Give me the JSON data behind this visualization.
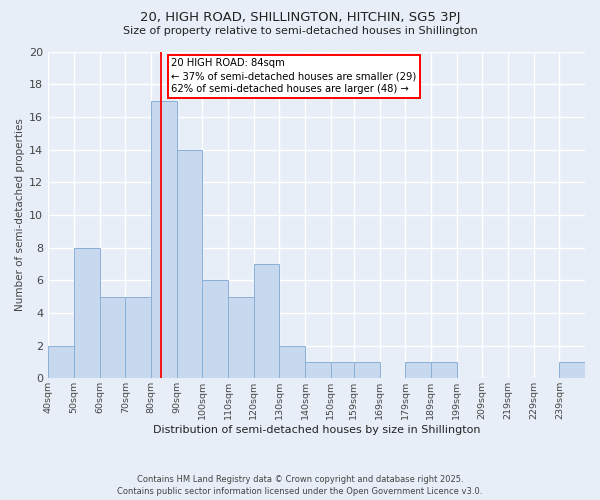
{
  "title1": "20, HIGH ROAD, SHILLINGTON, HITCHIN, SG5 3PJ",
  "title2": "Size of property relative to semi-detached houses in Shillington",
  "xlabel": "Distribution of semi-detached houses by size in Shillington",
  "ylabel": "Number of semi-detached properties",
  "bin_labels": [
    "40sqm",
    "50sqm",
    "60sqm",
    "70sqm",
    "80sqm",
    "90sqm",
    "100sqm",
    "110sqm",
    "120sqm",
    "130sqm",
    "140sqm",
    "150sqm",
    "159sqm",
    "169sqm",
    "179sqm",
    "189sqm",
    "199sqm",
    "209sqm",
    "219sqm",
    "229sqm",
    "239sqm"
  ],
  "bin_left_edges": [
    40,
    50,
    60,
    70,
    80,
    90,
    100,
    110,
    120,
    130,
    140,
    150,
    159,
    169,
    179,
    189,
    199,
    209,
    219,
    229,
    239
  ],
  "bin_widths": [
    10,
    10,
    10,
    10,
    10,
    10,
    10,
    10,
    10,
    10,
    10,
    9,
    10,
    10,
    10,
    10,
    10,
    10,
    10,
    10,
    10
  ],
  "bar_heights": [
    2,
    8,
    5,
    5,
    17,
    14,
    6,
    5,
    7,
    2,
    1,
    1,
    1,
    0,
    1,
    1,
    0,
    0,
    0,
    0,
    1
  ],
  "bar_color": "#c8d8ee",
  "bar_edge_color": "#8ab0d8",
  "red_line_x": 84,
  "annotation_text_line1": "20 HIGH ROAD: 84sqm",
  "annotation_text_line2": "← 37% of semi-detached houses are smaller (29)",
  "annotation_text_line3": "62% of semi-detached houses are larger (48) →",
  "background_color": "#e8eef8",
  "grid_color": "#ffffff",
  "ylim": [
    0,
    20
  ],
  "yticks": [
    0,
    2,
    4,
    6,
    8,
    10,
    12,
    14,
    16,
    18,
    20
  ],
  "footer1": "Contains HM Land Registry data © Crown copyright and database right 2025.",
  "footer2": "Contains public sector information licensed under the Open Government Licence v3.0."
}
